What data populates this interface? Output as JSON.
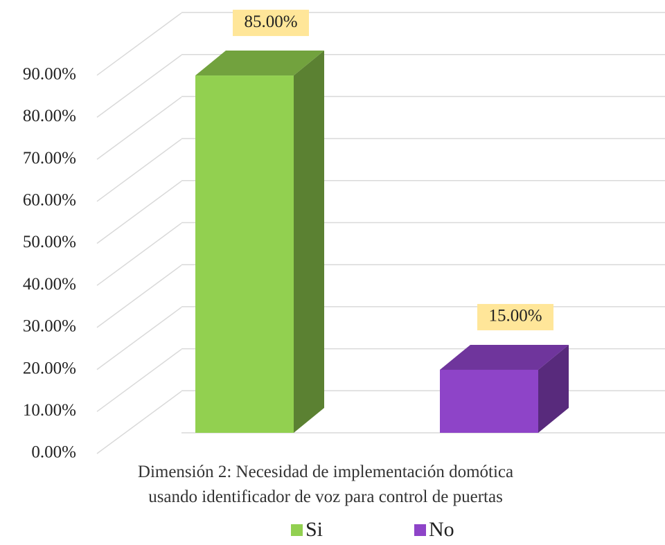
{
  "chart_data": {
    "type": "bar3d",
    "categories": [
      "Dimensión 2: Necesidad de implementación domótica usando identificador de voz para control de puertas"
    ],
    "series": [
      {
        "name": "Si",
        "color": "#92d050",
        "values": [
          85
        ],
        "value_labels": [
          "85.00%"
        ]
      },
      {
        "name": "No",
        "color": "#8e44c8",
        "values": [
          15
        ],
        "value_labels": [
          "15.00%"
        ]
      }
    ],
    "ylim": [
      0,
      100
    ],
    "yticks": [
      {
        "value": 0,
        "label": "0.00%"
      },
      {
        "value": 10,
        "label": "10.00%"
      },
      {
        "value": 20,
        "label": "20.00%"
      },
      {
        "value": 30,
        "label": "30.00%"
      },
      {
        "value": 40,
        "label": "40.00%"
      },
      {
        "value": 50,
        "label": "50.00%"
      },
      {
        "value": 60,
        "label": "60.00%"
      },
      {
        "value": 70,
        "label": "70.00%"
      },
      {
        "value": 80,
        "label": "80.00%"
      },
      {
        "value": 90,
        "label": "90.00%"
      }
    ],
    "grid": true,
    "legend": "bottom",
    "value_label_fill": "#ffe699"
  }
}
